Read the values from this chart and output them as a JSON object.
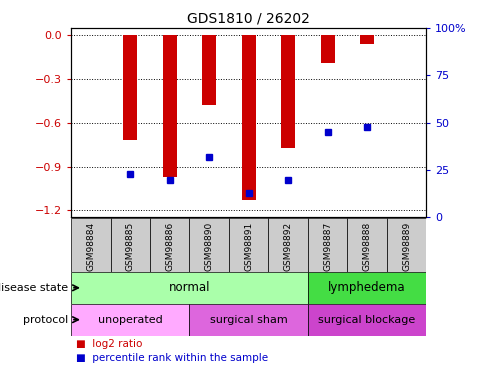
{
  "title": "GDS1810 / 26202",
  "samples": [
    "GSM98884",
    "GSM98885",
    "GSM98886",
    "GSM98890",
    "GSM98891",
    "GSM98892",
    "GSM98887",
    "GSM98888",
    "GSM98889"
  ],
  "log2_ratio": [
    null,
    -0.72,
    -0.97,
    -0.48,
    -1.13,
    -0.77,
    -0.19,
    -0.06,
    null
  ],
  "percentile": [
    null,
    23,
    20,
    32,
    13,
    20,
    45,
    48,
    null
  ],
  "ylim_left": [
    -1.25,
    0.05
  ],
  "ylim_right": [
    0,
    100
  ],
  "yticks_left": [
    0.0,
    -0.3,
    -0.6,
    -0.9,
    -1.2
  ],
  "yticks_right": [
    0,
    25,
    50,
    75,
    100
  ],
  "left_color": "#cc0000",
  "right_color": "#0000cc",
  "bar_color": "#cc0000",
  "dot_color": "#0000cc",
  "bar_width": 0.35,
  "disease_state": [
    {
      "label": "normal",
      "start": 0,
      "end": 6,
      "color": "#aaffaa"
    },
    {
      "label": "lymphedema",
      "start": 6,
      "end": 9,
      "color": "#44dd44"
    }
  ],
  "protocol": [
    {
      "label": "unoperated",
      "start": 0,
      "end": 3,
      "color": "#ffaaff"
    },
    {
      "label": "surgical sham",
      "start": 3,
      "end": 6,
      "color": "#dd66dd"
    },
    {
      "label": "surgical blockage",
      "start": 6,
      "end": 9,
      "color": "#cc44cc"
    }
  ],
  "legend_log2": "log2 ratio",
  "legend_pct": "percentile rank within the sample",
  "bg_color": "#ffffff",
  "xtick_bg": "#cccccc",
  "grid_color": "#000000"
}
